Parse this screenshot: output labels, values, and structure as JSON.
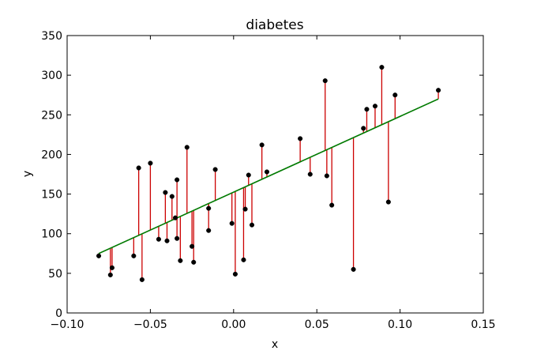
{
  "chart_data": {
    "type": "scatter",
    "title": "diabetes",
    "xlabel": "x",
    "ylabel": "y",
    "xlim": [
      -0.1,
      0.15
    ],
    "ylim": [
      0,
      350
    ],
    "xticks": [
      -0.1,
      -0.05,
      0.0,
      0.05,
      0.1,
      0.15
    ],
    "xtick_labels": [
      "−0.10",
      "−0.05",
      "0.00",
      "0.05",
      "0.10",
      "0.15"
    ],
    "yticks": [
      0,
      50,
      100,
      150,
      200,
      250,
      300,
      350
    ],
    "ytick_labels": [
      "0",
      "50",
      "100",
      "150",
      "200",
      "250",
      "300",
      "350"
    ],
    "grid": false,
    "legend": "none",
    "colors": {
      "points": "#000000",
      "residuals": "#cc0000",
      "fit_line": "#007a00"
    },
    "fit_line": {
      "x": [
        -0.081,
        0.123
      ],
      "y": [
        75,
        270
      ]
    },
    "points": [
      {
        "x": -0.081,
        "y": 72
      },
      {
        "x": -0.074,
        "y": 48
      },
      {
        "x": -0.073,
        "y": 57
      },
      {
        "x": -0.06,
        "y": 72
      },
      {
        "x": -0.057,
        "y": 183
      },
      {
        "x": -0.055,
        "y": 42
      },
      {
        "x": -0.05,
        "y": 189
      },
      {
        "x": -0.045,
        "y": 93
      },
      {
        "x": -0.041,
        "y": 152
      },
      {
        "x": -0.04,
        "y": 91
      },
      {
        "x": -0.037,
        "y": 147
      },
      {
        "x": -0.035,
        "y": 120
      },
      {
        "x": -0.034,
        "y": 94
      },
      {
        "x": -0.034,
        "y": 168
      },
      {
        "x": -0.032,
        "y": 66
      },
      {
        "x": -0.028,
        "y": 209
      },
      {
        "x": -0.025,
        "y": 84
      },
      {
        "x": -0.024,
        "y": 64
      },
      {
        "x": -0.015,
        "y": 132
      },
      {
        "x": -0.015,
        "y": 104
      },
      {
        "x": -0.011,
        "y": 181
      },
      {
        "x": -0.001,
        "y": 113
      },
      {
        "x": 0.001,
        "y": 49
      },
      {
        "x": 0.006,
        "y": 67
      },
      {
        "x": 0.007,
        "y": 131
      },
      {
        "x": 0.009,
        "y": 174
      },
      {
        "x": 0.011,
        "y": 111
      },
      {
        "x": 0.017,
        "y": 212
      },
      {
        "x": 0.02,
        "y": 178
      },
      {
        "x": 0.04,
        "y": 220
      },
      {
        "x": 0.046,
        "y": 175
      },
      {
        "x": 0.055,
        "y": 293
      },
      {
        "x": 0.056,
        "y": 173
      },
      {
        "x": 0.059,
        "y": 136
      },
      {
        "x": 0.072,
        "y": 55
      },
      {
        "x": 0.078,
        "y": 233
      },
      {
        "x": 0.08,
        "y": 257
      },
      {
        "x": 0.085,
        "y": 261
      },
      {
        "x": 0.089,
        "y": 310
      },
      {
        "x": 0.093,
        "y": 140
      },
      {
        "x": 0.097,
        "y": 275
      },
      {
        "x": 0.123,
        "y": 281
      }
    ]
  }
}
